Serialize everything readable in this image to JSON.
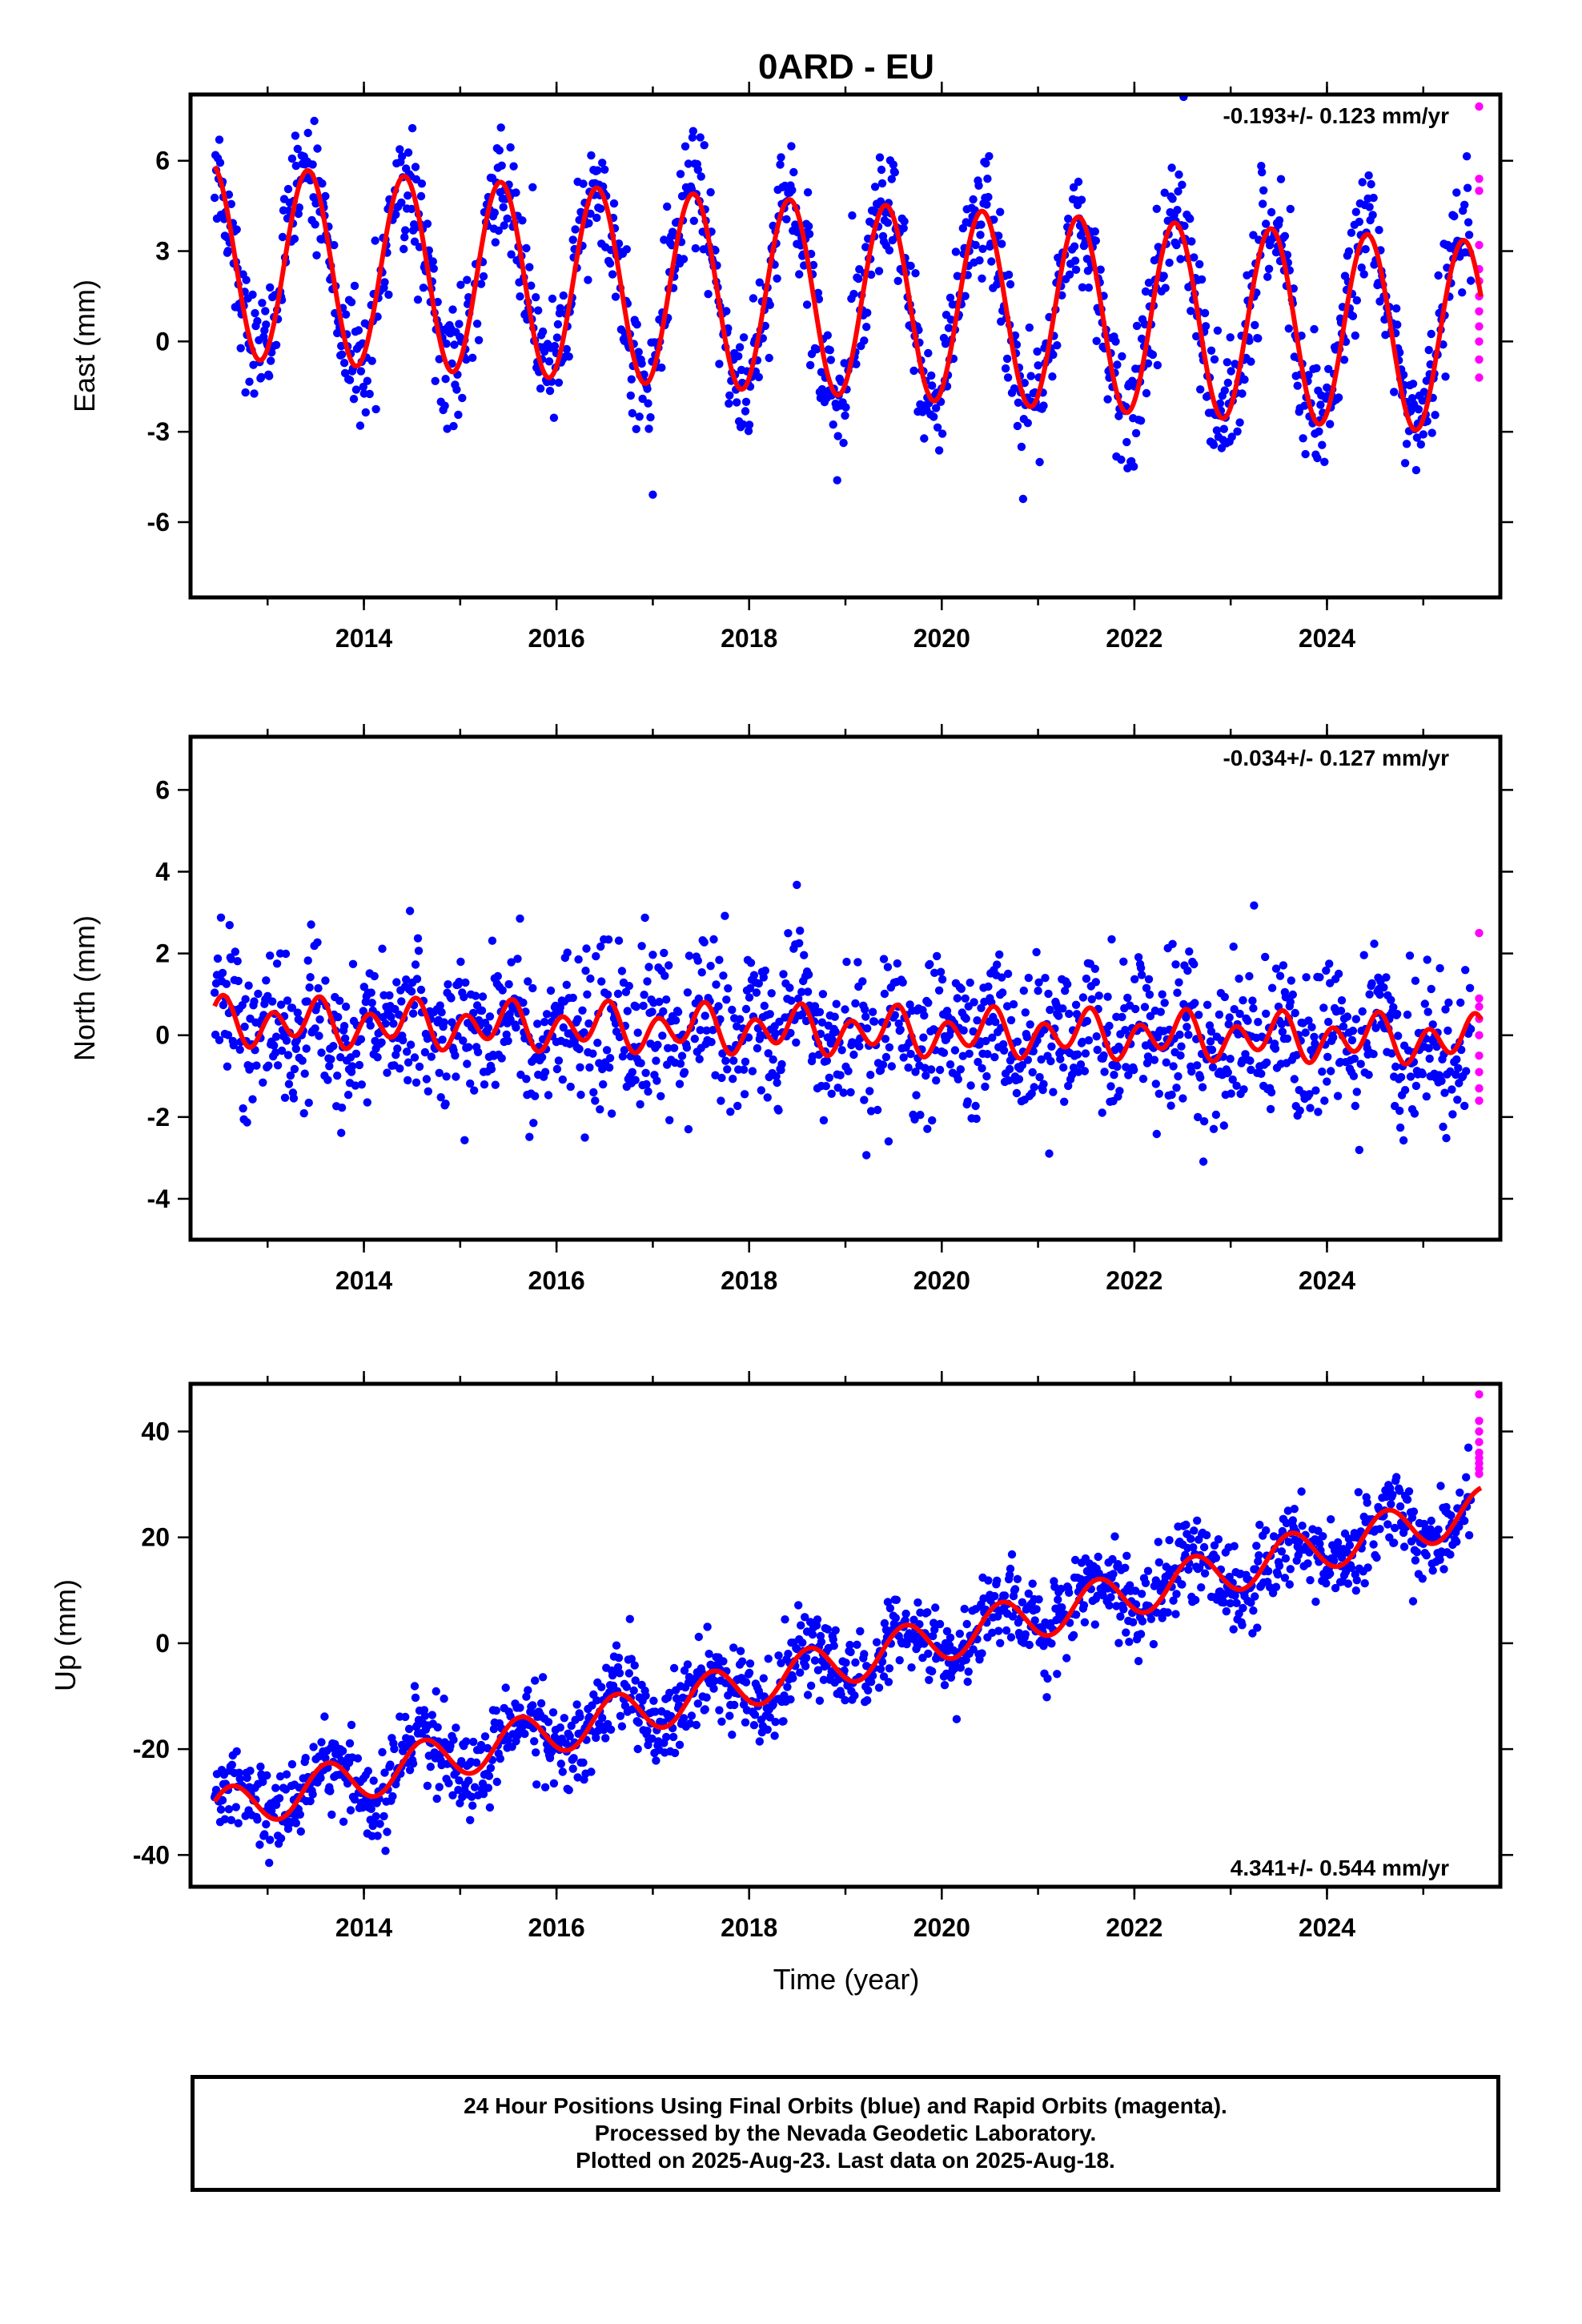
{
  "title": "0ARD - EU",
  "xlabel": "Time (year)",
  "footer": {
    "line1": "24 Hour Positions Using Final Orbits (blue) and Rapid Orbits (magenta).",
    "line2": "Processed by the Nevada Geodetic Laboratory.",
    "line3": "Plotted on 2025-Aug-23. Last data on 2025-Aug-18."
  },
  "colors": {
    "final": "#0000ff",
    "rapid": "#ff00ff",
    "model": "#ff0000"
  },
  "chart_data": [
    {
      "type": "scatter",
      "ylabel": "East (mm)",
      "rate_text": "-0.193+/- 0.123 mm/yr",
      "rate_position": "top-right",
      "xlim": [
        2012.2,
        2025.8
      ],
      "ylim": [
        -8.5,
        8.2
      ],
      "x_ticks": [
        "2014",
        "2016",
        "2018",
        "2020",
        "2022",
        "2024"
      ],
      "y_ticks": [
        "6",
        "3",
        "0",
        "-3",
        "-6"
      ],
      "x_tick_values": [
        2014,
        2016,
        2018,
        2020,
        2022,
        2024
      ],
      "y_tick_values": [
        6,
        3,
        0,
        -3,
        -6
      ],
      "series": [
        {
          "values": {
            "x_start": 2012.45,
            "x_end": 2025.5,
            "offset": 1.4,
            "rate": -0.193,
            "annual_amplitude": 3.2,
            "peak_phase": 0.42,
            "scatter_std": 1.0
          }
        },
        {
          "values": {
            "x": 2025.58,
            "y": [
              7.8,
              5.4,
              5.0,
              3.2,
              2.4,
              2.0,
              1.5,
              1.0,
              0.5,
              0.0,
              -0.6,
              -1.2
            ]
          }
        },
        {
          "values": {
            "model": "offset + rate*(t-2019) + annual sinusoid"
          }
        }
      ]
    },
    {
      "type": "scatter",
      "ylabel": "North (mm)",
      "rate_text": "-0.034+/- 0.127 mm/yr",
      "rate_position": "top-right",
      "xlim": [
        2012.2,
        2025.8
      ],
      "ylim": [
        -5.0,
        7.3
      ],
      "x_ticks": [
        "2014",
        "2016",
        "2018",
        "2020",
        "2022",
        "2024"
      ],
      "y_ticks": [
        "6",
        "4",
        "2",
        "0",
        "-2",
        "-4"
      ],
      "x_tick_values": [
        2014,
        2016,
        2018,
        2020,
        2022,
        2024
      ],
      "y_tick_values": [
        6,
        4,
        2,
        0,
        -2,
        -4
      ],
      "series": [
        {
          "values": {
            "x_start": 2012.45,
            "x_end": 2025.5,
            "offset": 0.1,
            "rate": -0.034,
            "annual_amplitude": 0.25,
            "semiannual_amplitude": 0.45,
            "scatter_std": 0.9
          }
        },
        {
          "values": {
            "x": 2025.58,
            "y": [
              2.5,
              0.9,
              0.7,
              0.4,
              0.0,
              -0.5,
              -0.9,
              -1.3,
              -1.6
            ]
          }
        },
        {
          "values": {
            "model": "offset + rate*(t-2019) + annual and semiannual sinusoid"
          }
        }
      ]
    },
    {
      "type": "scatter",
      "ylabel": "Up (mm)",
      "rate_text": "4.341+/- 0.544 mm/yr",
      "rate_position": "bottom-right",
      "xlim": [
        2012.2,
        2025.8
      ],
      "ylim": [
        -46,
        49
      ],
      "x_ticks": [
        "2014",
        "2016",
        "2018",
        "2020",
        "2022",
        "2024"
      ],
      "y_ticks": [
        "40",
        "20",
        "0",
        "-20",
        "-40"
      ],
      "x_tick_values": [
        2014,
        2016,
        2018,
        2020,
        2022,
        2024
      ],
      "y_tick_values": [
        40,
        20,
        0,
        -20,
        -40
      ],
      "series": [
        {
          "values": {
            "x_start": 2012.45,
            "x_end": 2025.5,
            "offset": -3.5,
            "rate": 4.341,
            "annual_amplitude": 4.2,
            "peak_phase": 0.62,
            "scatter_std": 4.0
          }
        },
        {
          "values": {
            "x": 2025.58,
            "y": [
              47.0,
              42.0,
              40.0,
              38.0,
              36.0,
              35.0,
              34.0,
              33.0,
              32.0
            ]
          }
        },
        {
          "values": {
            "model": "offset + rate*(t-2019) + annual sinusoid"
          }
        }
      ]
    }
  ]
}
